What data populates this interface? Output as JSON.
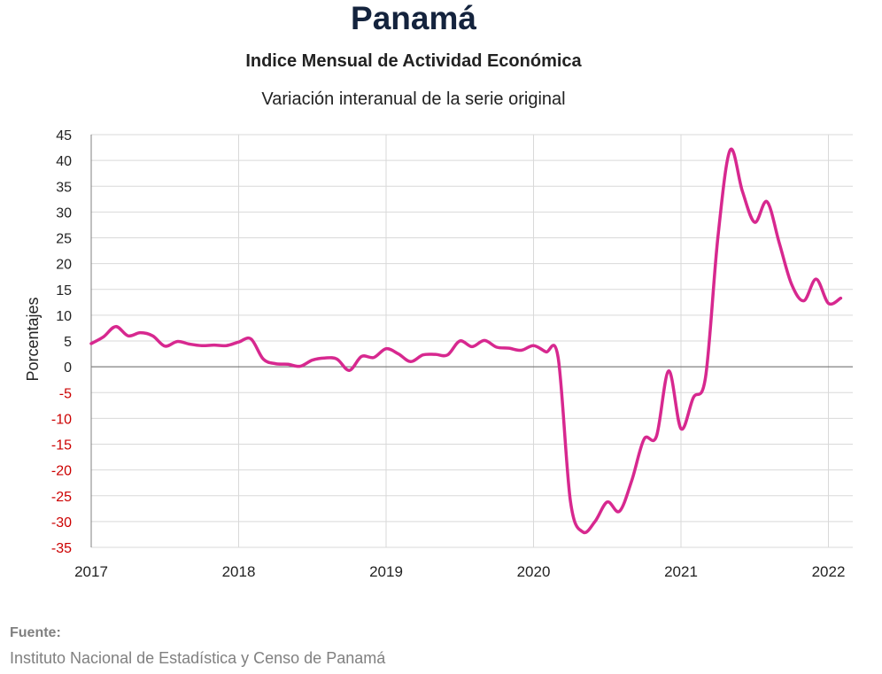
{
  "chart_data": {
    "type": "line",
    "title": "Panamá",
    "subtitle": "Indice Mensual de  Actividad Económica",
    "subtitle2": "Variación interanual de la serie original",
    "ylabel": "Porcentajes",
    "xlabel": "",
    "ylim": [
      -35,
      45
    ],
    "yticks": [
      45,
      40,
      35,
      30,
      25,
      20,
      15,
      10,
      5,
      0,
      -5,
      -10,
      -15,
      -20,
      -25,
      -30,
      -35
    ],
    "xticks": [
      "2017",
      "2018",
      "2019",
      "2020",
      "2021",
      "2022"
    ],
    "grid": true,
    "negative_tick_color": "#cc0000",
    "line_color": "#d7288f",
    "series": [
      {
        "values": [
          4.5,
          5.8,
          7.8,
          6.0,
          6.6,
          6.0,
          4.0,
          4.9,
          4.4,
          4.1,
          4.2,
          4.1,
          4.8,
          5.4,
          1.5,
          0.6,
          0.5,
          0.1,
          1.3,
          1.7,
          1.5,
          -0.7,
          2.0,
          1.8,
          3.5,
          2.5,
          1.0,
          2.3,
          2.4,
          2.3,
          5.0,
          3.9,
          5.1,
          3.8,
          3.6,
          3.2,
          4.1,
          2.9,
          1.8,
          -26.0,
          -32.0,
          -30.0,
          -26.2,
          -28.0,
          -22.0,
          -14.0,
          -13.5,
          -0.8,
          -12.0,
          -6.0,
          -2.0,
          25.0,
          42.0,
          34.0,
          28.0,
          32.0,
          24.0,
          16.0,
          12.8,
          17.0,
          12.3,
          13.3
        ]
      }
    ],
    "x_start": "2017-01",
    "x_frequency": "monthly"
  },
  "source": {
    "label": "Fuente:",
    "text": "Instituto Nacional de Estadística y Censo de Panamá"
  }
}
